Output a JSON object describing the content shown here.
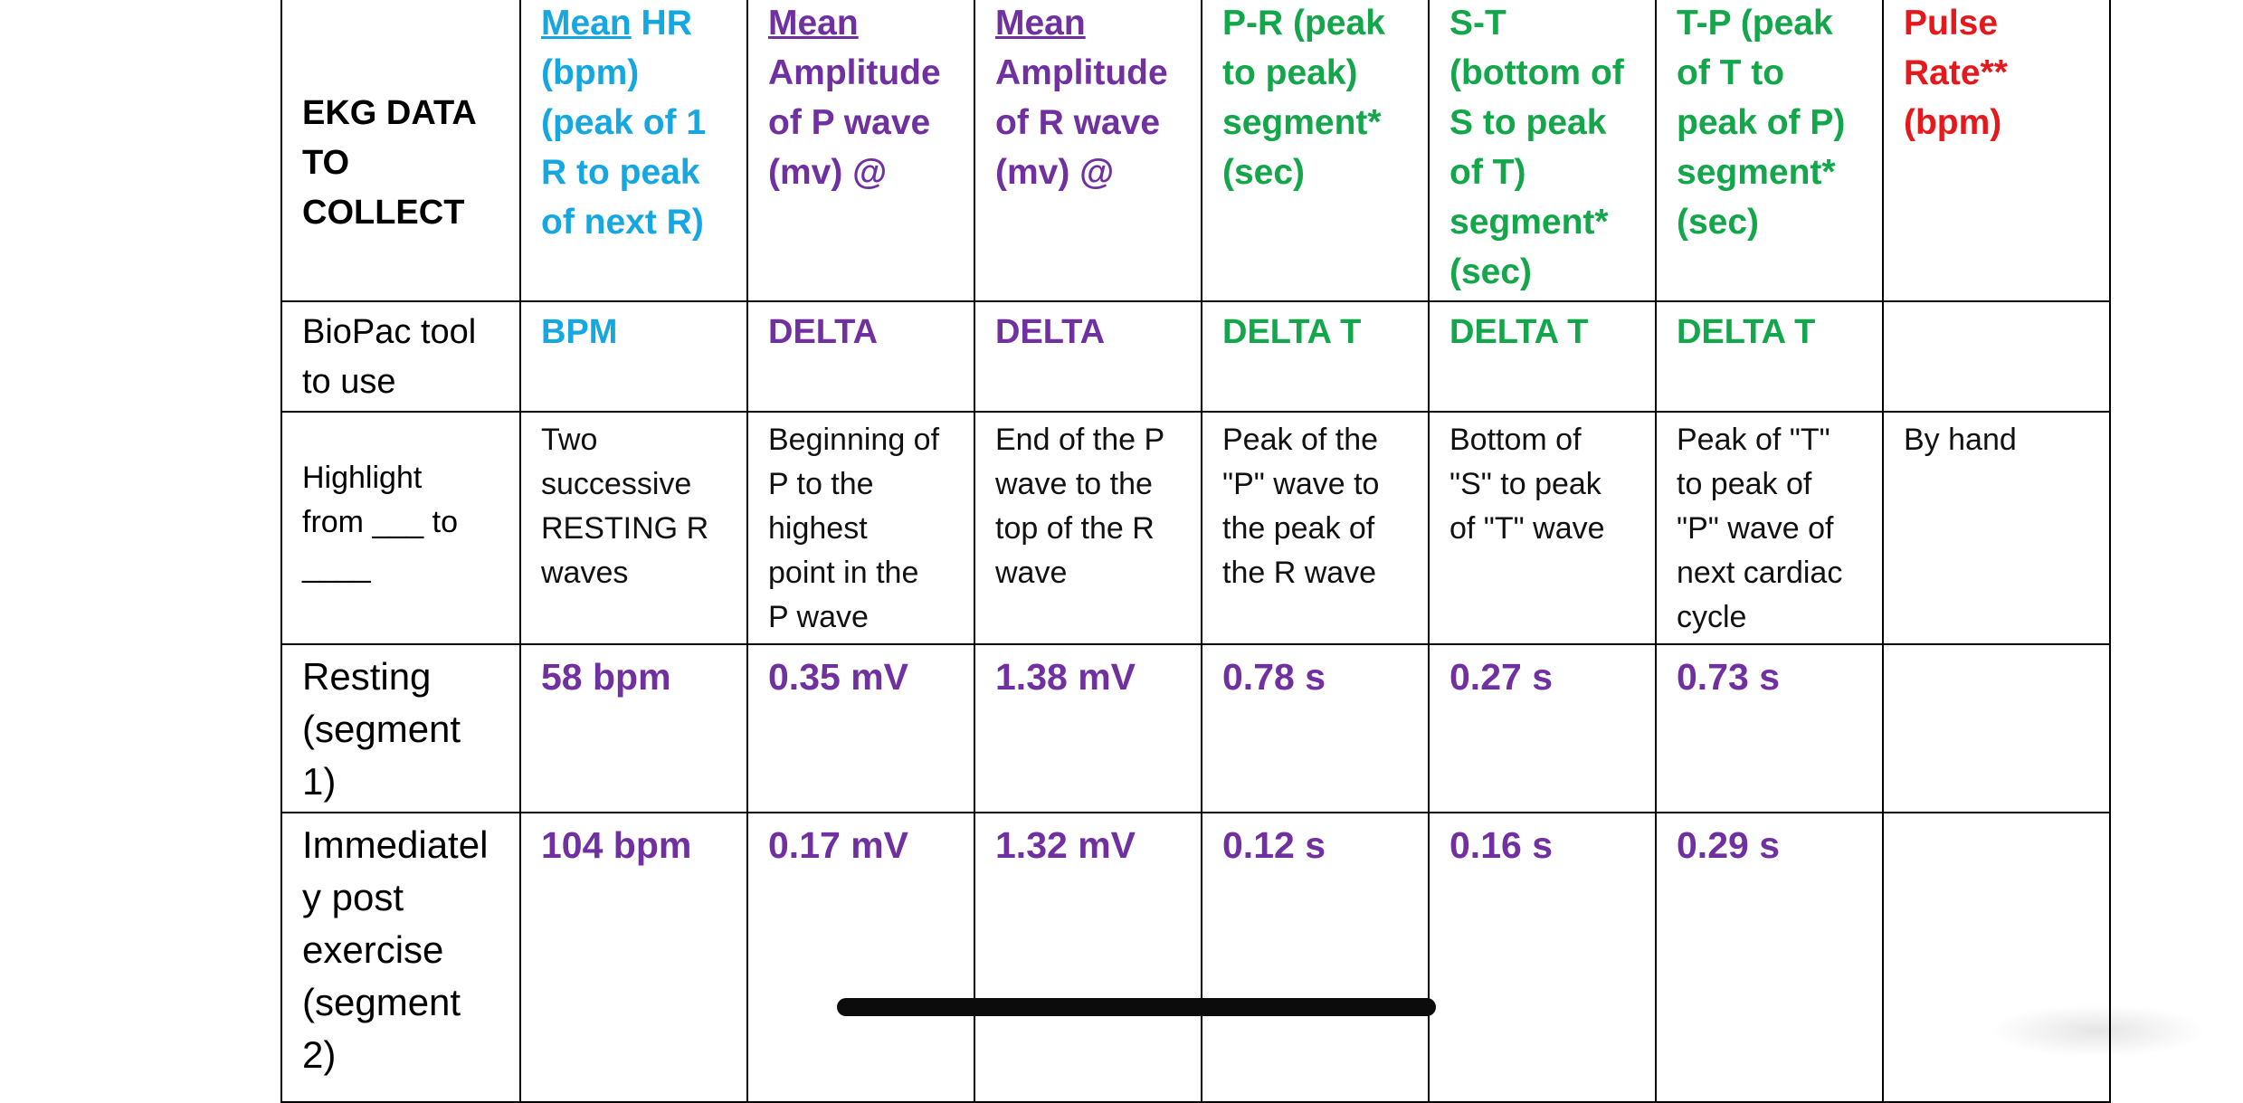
{
  "colors": {
    "blue": "#16a6e0",
    "purple": "#7030a0",
    "green": "#13a64a",
    "red": "#e5181b",
    "border": "#000000",
    "scrollbar": "#0c0c0c"
  },
  "table": {
    "header": {
      "label": "EKG DATA\nTO\nCOLLECT",
      "col1_underlined": "Mean",
      "col1_rest": " HR\n(bpm)\n(peak of 1\nR to peak\nof next R)",
      "col2_underlined": "Mean",
      "col2_rest": "\nAmplitude\nof P wave\n(mv) @",
      "col3_underlined": "Mean",
      "col3_rest": "\nAmplitude\nof R wave\n(mv) @",
      "col4": "P-R (peak\nto peak)\nsegment*\n(sec)",
      "col5": "S-T\n(bottom of\nS to peak\nof T)\nsegment*\n(sec)",
      "col6": "T-P (peak\nof T to\npeak of P)\nsegment*\n(sec)",
      "col7": "Pulse\nRate**\n(bpm)"
    },
    "tool_row": {
      "label": "BioPac tool\nto use",
      "values": [
        "BPM",
        "DELTA",
        "DELTA",
        "DELTA T",
        "DELTA T",
        "DELTA T",
        ""
      ]
    },
    "highlight_row": {
      "label": "Highlight\nfrom ___ to\n____",
      "values": [
        "Two\nsuccessive\nRESTING R\nwaves",
        "Beginning of\nP to the\nhighest\npoint in the\nP wave",
        "End of the P\nwave to the\ntop of the R\nwave",
        "Peak of the\n\"P\" wave to\nthe peak of\nthe R wave",
        "Bottom of\n\"S\" to peak\nof \"T\" wave",
        "Peak of \"T\"\nto peak of\n\"P\" wave of\nnext cardiac\ncycle",
        "By hand"
      ]
    },
    "rows": [
      {
        "label": "Resting\n(segment\n1)",
        "values": [
          "58 bpm",
          "0.35 mV",
          "1.38 mV",
          "0.78 s",
          "0.27 s",
          "0.73 s",
          ""
        ]
      },
      {
        "label": "Immediatel\ny post\nexercise\n(segment\n2)",
        "values": [
          "104 bpm",
          "0.17 mV",
          "1.32 mV",
          "0.12 s",
          "0.16 s",
          "0.29 s",
          ""
        ]
      }
    ]
  }
}
